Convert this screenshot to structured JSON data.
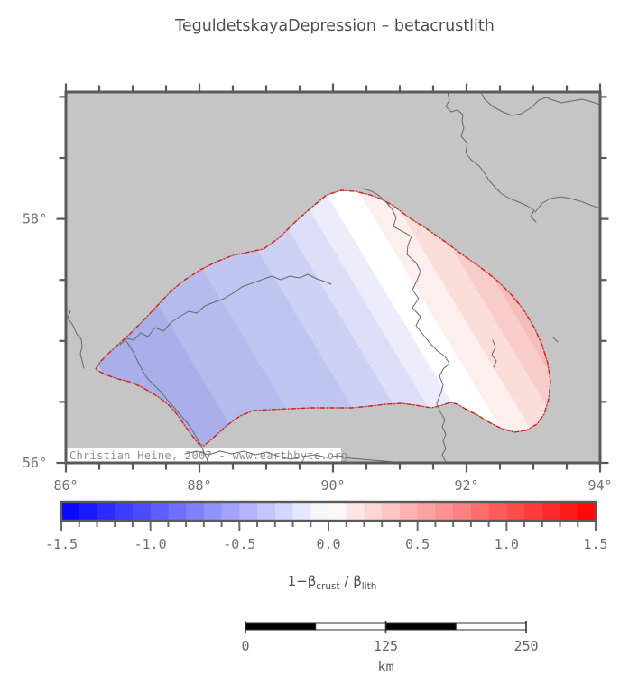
{
  "title": "TeguldetskayaDepression – betacrustlith",
  "colors": {
    "page_background": "#ffffff",
    "map_background": "#c5c5c5",
    "frame": "#5a5a5a",
    "tick_label": "#6f6f6f",
    "title_text": "#4f4f4f",
    "river": "#686868",
    "region_outline_red": "#e8170e",
    "region_outline_gray": "#8a8a8a",
    "copyright_text": "#8f8f8f",
    "copyright_background": "#ffffff",
    "colorbar_negative_end": "#0000ff",
    "colorbar_middle": "#ffffff",
    "colorbar_positive_end": "#ff0000",
    "scalebar_dark": "#000000",
    "scalebar_light": "#ffffff"
  },
  "map": {
    "copyright": "Christian Heine, 2007 - www.earthbyte.org",
    "lon_axis": {
      "min": 86,
      "max": 94,
      "minor_step": 0.5,
      "labels": [
        {
          "value": 86,
          "text": "86°"
        },
        {
          "value": 88,
          "text": "88°"
        },
        {
          "value": 90,
          "text": "90°"
        },
        {
          "value": 92,
          "text": "92°"
        },
        {
          "value": 94,
          "text": "94°"
        }
      ]
    },
    "lat_axis": {
      "min": 56,
      "max": 59.04,
      "minor_step": 0.5,
      "labels": [
        {
          "value": 58,
          "text": "58°"
        },
        {
          "value": 56,
          "text": "56°"
        }
      ]
    }
  },
  "colorbar": {
    "min": -1.5,
    "max": 1.5,
    "segment_step": 0.1,
    "tick_minor_step": 0.1,
    "tick_major_step": 0.5,
    "labels": [
      {
        "value": -1.5,
        "text": "-1.5"
      },
      {
        "value": -1.0,
        "text": "-1.0"
      },
      {
        "value": -0.5,
        "text": "-0.5"
      },
      {
        "value": 0.0,
        "text": "0.0"
      },
      {
        "value": 0.5,
        "text": "0.5"
      },
      {
        "value": 1.0,
        "text": "1.0"
      },
      {
        "value": 1.5,
        "text": "1.5"
      }
    ],
    "label_parts": {
      "prefix": "1−β",
      "sub1": "crust",
      "mid": " / β",
      "sub2": "lith"
    }
  },
  "scalebar": {
    "length_km": 250,
    "segments": 4,
    "labels": [
      {
        "km": 0,
        "text": "0"
      },
      {
        "km": 125,
        "text": "125"
      },
      {
        "km": 250,
        "text": "250"
      }
    ],
    "unit": "km"
  },
  "map_data": {
    "type": "filled-contour-region",
    "region_name": "Teguldetskaya Depression",
    "quantity": "1 - beta_crust / beta_lith",
    "value_range_displayed": [
      -0.5,
      0.4
    ],
    "gradient_bands": [
      {
        "t0": 0.0,
        "t1": 0.065,
        "color": "#c6cbf1"
      },
      {
        "t0": 0.065,
        "t1": 0.21,
        "color": "#a9b0e9"
      },
      {
        "t0": 0.21,
        "t1": 0.31,
        "color": "#b5bbed"
      },
      {
        "t0": 0.31,
        "t1": 0.41,
        "color": "#c0c5ef"
      },
      {
        "t0": 0.41,
        "t1": 0.475,
        "color": "#cdd1f3"
      },
      {
        "t0": 0.475,
        "t1": 0.525,
        "color": "#dcdff7"
      },
      {
        "t0": 0.525,
        "t1": 0.565,
        "color": "#ecedfb"
      },
      {
        "t0": 0.565,
        "t1": 0.615,
        "color": "#ffffff"
      },
      {
        "t0": 0.615,
        "t1": 0.66,
        "color": "#fdefee"
      },
      {
        "t0": 0.66,
        "t1": 0.705,
        "color": "#fbdeda"
      },
      {
        "t0": 0.705,
        "t1": 0.74,
        "color": "#f8ccc8"
      },
      {
        "t0": 0.74,
        "t1": 1.0,
        "color": "#f5bdb9"
      }
    ]
  }
}
